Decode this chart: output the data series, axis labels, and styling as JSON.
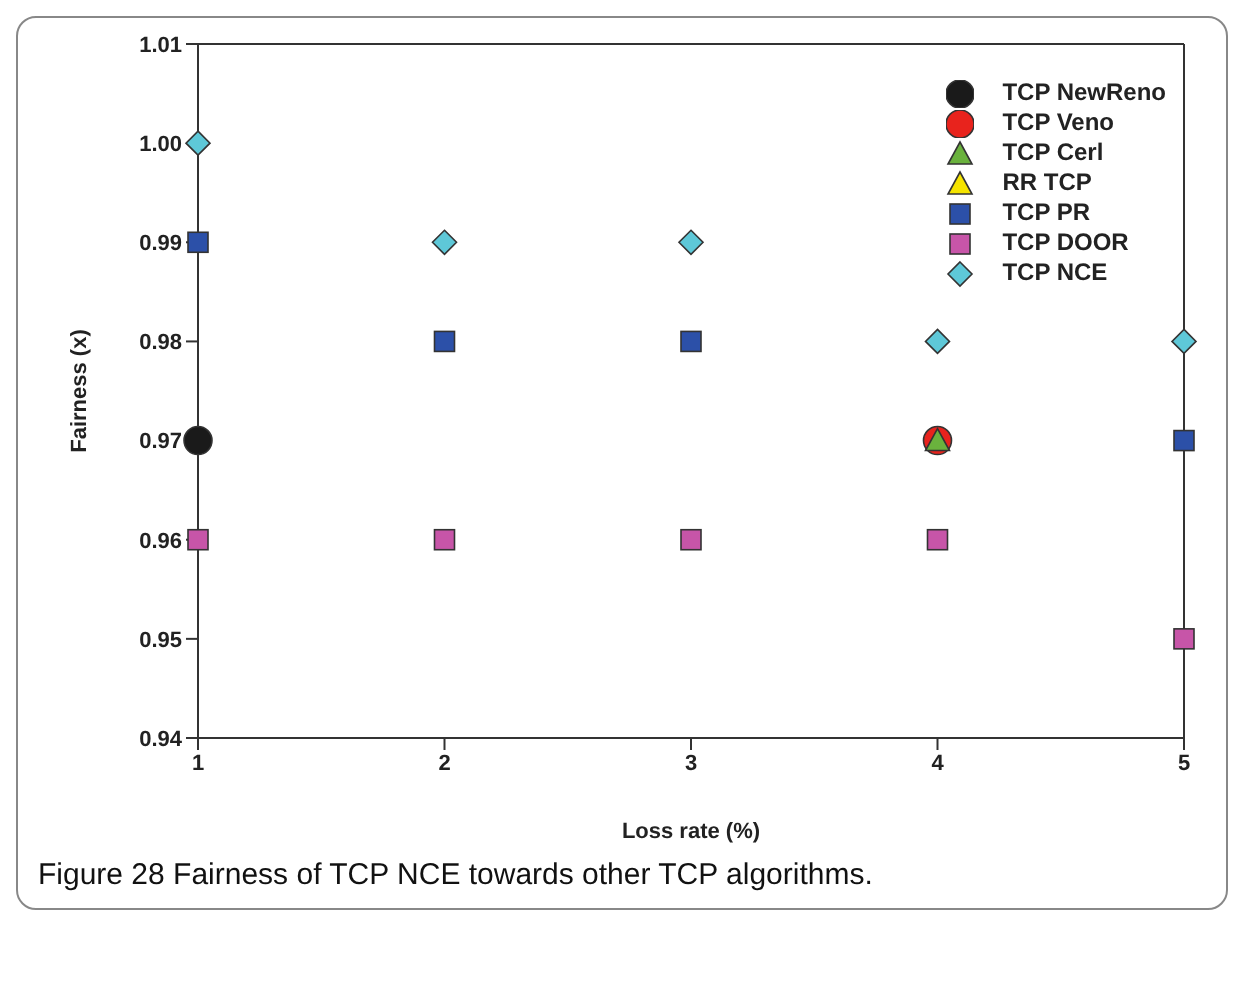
{
  "chart_data": {
    "type": "scatter",
    "xlabel": "Loss rate (%)",
    "ylabel": "Fairness (x)",
    "annotations": [
      "Figure 28 Fairness of TCP NCE towards other TCP algorithms."
    ],
    "x": [
      1,
      2,
      3,
      4,
      5
    ],
    "xlim": [
      1,
      5
    ],
    "xticks": [
      1,
      2,
      3,
      4,
      5
    ],
    "ylim": [
      0.94,
      1.01
    ],
    "yticks": [
      {
        "value": 0.94,
        "label": "0.94"
      },
      {
        "value": 0.95,
        "label": "0.95"
      },
      {
        "value": 0.96,
        "label": "0.96"
      },
      {
        "value": 0.97,
        "label": "0.97"
      },
      {
        "value": 0.98,
        "label": "0.98"
      },
      {
        "value": 0.99,
        "label": "0.99"
      },
      {
        "value": 1.0,
        "label": "1.00"
      },
      {
        "value": 1.01,
        "label": "1.01"
      }
    ],
    "legend": "top right",
    "series": [
      {
        "name": "TCP NewReno",
        "color": "#1a1a1a",
        "marker": "circle",
        "values": [
          0.97,
          null,
          null,
          null,
          null
        ]
      },
      {
        "name": "TCP Veno",
        "color": "#e8231d",
        "marker": "circle",
        "values": [
          null,
          null,
          null,
          0.97,
          null
        ]
      },
      {
        "name": "TCP Cerl",
        "color": "#6ab23d",
        "marker": "triangle",
        "values": [
          null,
          null,
          null,
          0.97,
          null
        ]
      },
      {
        "name": "RR TCP",
        "color": "#f5e400",
        "marker": "triangle",
        "values": [
          null,
          null,
          null,
          null,
          null
        ]
      },
      {
        "name": "TCP PR",
        "color": "#2c50a8",
        "marker": "square",
        "values": [
          0.99,
          0.98,
          0.98,
          null,
          0.97
        ]
      },
      {
        "name": "TCP DOOR",
        "color": "#c755a8",
        "marker": "square",
        "values": [
          0.96,
          0.96,
          0.96,
          0.96,
          0.95
        ]
      },
      {
        "name": "TCP NCE",
        "color": "#5ec8d8",
        "marker": "diamond",
        "values": [
          1.0,
          0.99,
          0.99,
          0.98,
          0.98
        ]
      }
    ]
  }
}
